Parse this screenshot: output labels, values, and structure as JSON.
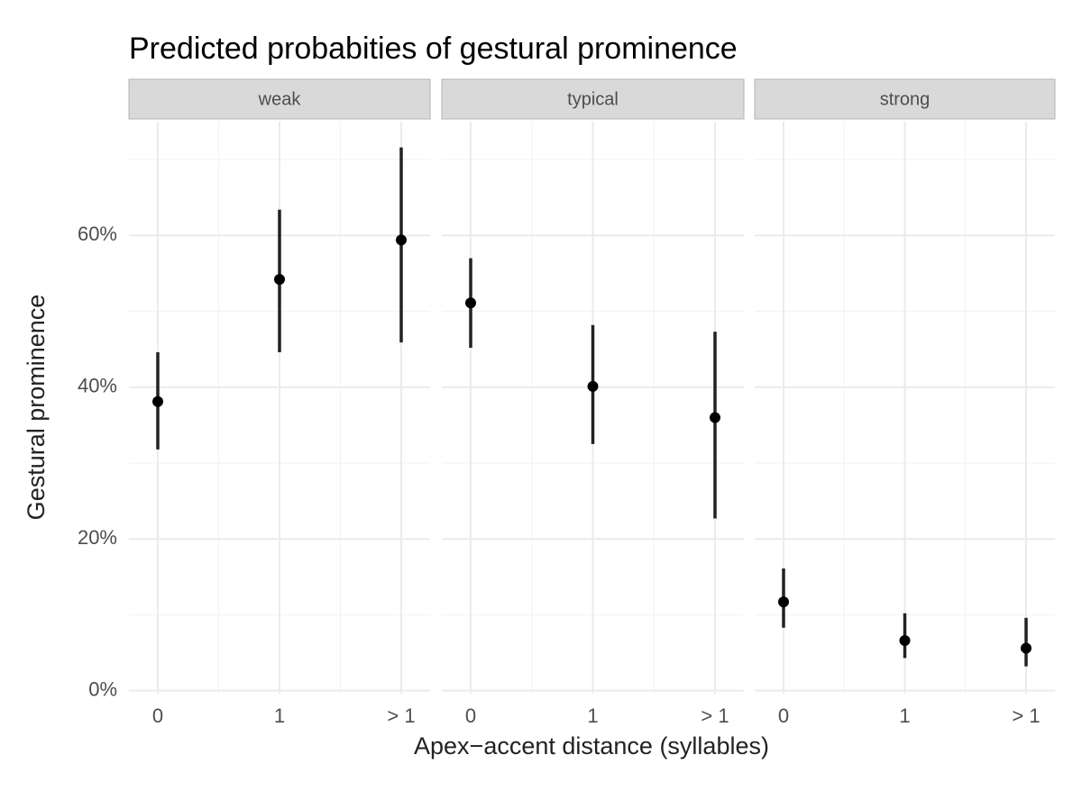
{
  "chart_data": {
    "type": "pointrange",
    "title": "Predicted probabities of gestural prominence",
    "x_label": "Apex−accent distance (syllables)",
    "y_label": "Gestural prominence",
    "categories": [
      "0",
      "1",
      "> 1"
    ],
    "ylim": [
      -0.4,
      75
    ],
    "yticks": [
      {
        "value": 0,
        "label": "0%"
      },
      {
        "value": 20,
        "label": "20%"
      },
      {
        "value": 40,
        "label": "40%"
      },
      {
        "value": 60,
        "label": "60%"
      }
    ],
    "grid": true,
    "color": "#000000",
    "facets": [
      {
        "name": "weak",
        "values": [
          38.1,
          54.2,
          59.4
        ],
        "lower": [
          31.8,
          44.6,
          45.9
        ],
        "upper": [
          44.6,
          63.4,
          71.6
        ]
      },
      {
        "name": "typical",
        "values": [
          51.1,
          40.1,
          36.0
        ],
        "lower": [
          45.2,
          32.5,
          22.7
        ],
        "upper": [
          57.0,
          48.2,
          47.3
        ]
      },
      {
        "name": "strong",
        "values": [
          11.7,
          6.6,
          5.6
        ],
        "lower": [
          8.3,
          4.3,
          3.2
        ],
        "upper": [
          16.1,
          10.2,
          9.6
        ]
      }
    ]
  }
}
